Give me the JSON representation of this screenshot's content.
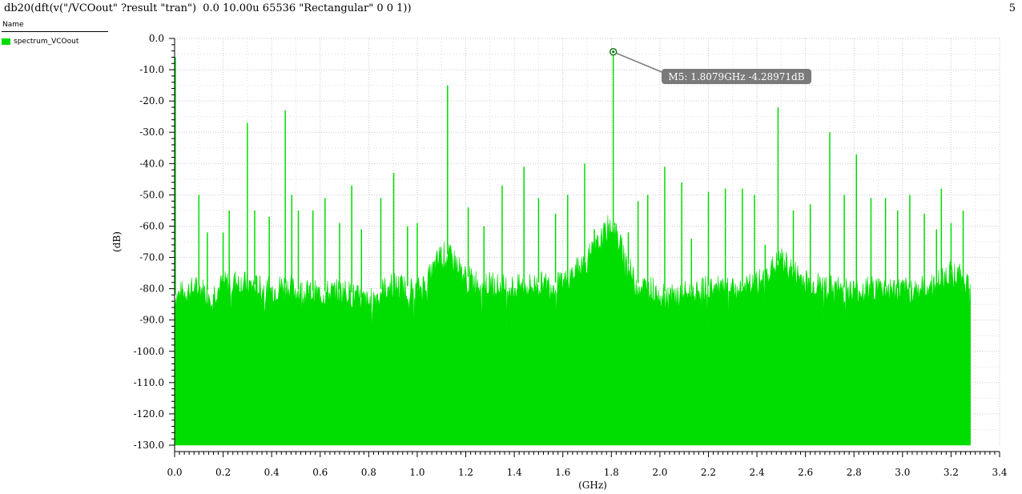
{
  "header": {
    "expression": "db20(dft(v(\"/VCOout\" ?result \"tran\")  0.0 10.00u 65536 \"Rectangular\" 0 0 1))",
    "page_number": "5"
  },
  "legend": {
    "header": "Name",
    "items": [
      {
        "label": "spectrum_VCOout",
        "color": "#00dd00"
      }
    ]
  },
  "marker": {
    "label": "M5: 1.8079GHz -4.28971dB",
    "x": 1.8079,
    "y": -4.28971
  },
  "chart_data": {
    "type": "area",
    "xlabel": "(GHz)",
    "ylabel": "(dB)",
    "xlim": [
      0,
      3.4
    ],
    "ylim": [
      -130,
      0
    ],
    "x_ticks": [
      "0.0",
      "0.2",
      "0.4",
      "0.6",
      "0.8",
      "1.0",
      "1.2",
      "1.4",
      "1.6",
      "1.8",
      "2.0",
      "2.2",
      "2.4",
      "2.6",
      "2.8",
      "3.0",
      "3.2",
      "3.4"
    ],
    "y_ticks": [
      "0.0",
      "-10.0",
      "-20.0",
      "-30.0",
      "-40.0",
      "-50.0",
      "-60.0",
      "-70.0",
      "-80.0",
      "-90.0",
      "-100.0",
      "-110.0",
      "-120.0",
      "-130.0"
    ],
    "grid": true,
    "series": [
      {
        "name": "spectrum_VCOout",
        "color": "#00dd00",
        "x_range": [
          0,
          3.28
        ],
        "noise_floor": [
          [
            0.0,
            -82
          ],
          [
            0.05,
            -80
          ],
          [
            0.1,
            -79
          ],
          [
            0.15,
            -81
          ],
          [
            0.2,
            -78
          ],
          [
            0.25,
            -77
          ],
          [
            0.3,
            -78
          ],
          [
            0.35,
            -79
          ],
          [
            0.4,
            -80
          ],
          [
            0.45,
            -78
          ],
          [
            0.5,
            -80
          ],
          [
            0.6,
            -81
          ],
          [
            0.7,
            -80
          ],
          [
            0.75,
            -82
          ],
          [
            0.8,
            -84
          ],
          [
            0.85,
            -80
          ],
          [
            0.9,
            -78
          ],
          [
            0.95,
            -79
          ],
          [
            1.0,
            -80
          ],
          [
            1.05,
            -76
          ],
          [
            1.1,
            -68
          ],
          [
            1.15,
            -70
          ],
          [
            1.2,
            -76
          ],
          [
            1.3,
            -78
          ],
          [
            1.4,
            -79
          ],
          [
            1.5,
            -78
          ],
          [
            1.6,
            -78
          ],
          [
            1.65,
            -74
          ],
          [
            1.7,
            -70
          ],
          [
            1.75,
            -65
          ],
          [
            1.8,
            -58
          ],
          [
            1.85,
            -68
          ],
          [
            1.9,
            -78
          ],
          [
            2.0,
            -80
          ],
          [
            2.05,
            -82
          ],
          [
            2.1,
            -81
          ],
          [
            2.2,
            -79
          ],
          [
            2.3,
            -80
          ],
          [
            2.4,
            -78
          ],
          [
            2.45,
            -74
          ],
          [
            2.5,
            -70
          ],
          [
            2.55,
            -74
          ],
          [
            2.6,
            -77
          ],
          [
            2.7,
            -79
          ],
          [
            2.8,
            -80
          ],
          [
            2.9,
            -79
          ],
          [
            3.0,
            -80
          ],
          [
            3.1,
            -79
          ],
          [
            3.15,
            -77
          ],
          [
            3.2,
            -74
          ],
          [
            3.25,
            -76
          ],
          [
            3.28,
            -78
          ]
        ],
        "spurs": [
          [
            0.003,
            -6
          ],
          [
            0.1,
            -50
          ],
          [
            0.135,
            -62
          ],
          [
            0.2,
            -62
          ],
          [
            0.225,
            -55
          ],
          [
            0.3,
            -27
          ],
          [
            0.33,
            -55
          ],
          [
            0.39,
            -57
          ],
          [
            0.456,
            -23
          ],
          [
            0.483,
            -50
          ],
          [
            0.51,
            -55
          ],
          [
            0.57,
            -55
          ],
          [
            0.62,
            -51
          ],
          [
            0.68,
            -59
          ],
          [
            0.73,
            -47
          ],
          [
            0.77,
            -61
          ],
          [
            0.85,
            -51
          ],
          [
            0.903,
            -43
          ],
          [
            0.96,
            -60
          ],
          [
            1.0,
            -59
          ],
          [
            1.125,
            -15
          ],
          [
            1.21,
            -54
          ],
          [
            1.275,
            -60
          ],
          [
            1.35,
            -47
          ],
          [
            1.44,
            -41
          ],
          [
            1.5,
            -51
          ],
          [
            1.57,
            -56
          ],
          [
            1.62,
            -50
          ],
          [
            1.69,
            -40
          ],
          [
            1.73,
            -61
          ],
          [
            1.8079,
            -4.28971
          ],
          [
            1.87,
            -62
          ],
          [
            1.91,
            -52
          ],
          [
            1.95,
            -50
          ],
          [
            2.02,
            -41
          ],
          [
            2.09,
            -46
          ],
          [
            2.13,
            -64
          ],
          [
            2.2,
            -49
          ],
          [
            2.27,
            -48
          ],
          [
            2.34,
            -48
          ],
          [
            2.39,
            -50
          ],
          [
            2.434,
            -66
          ],
          [
            2.487,
            -22
          ],
          [
            2.55,
            -55
          ],
          [
            2.62,
            -53
          ],
          [
            2.7,
            -30
          ],
          [
            2.76,
            -50
          ],
          [
            2.81,
            -37
          ],
          [
            2.87,
            -51
          ],
          [
            2.93,
            -51
          ],
          [
            2.98,
            -55
          ],
          [
            3.03,
            -50
          ],
          [
            3.09,
            -56
          ],
          [
            3.14,
            -61
          ],
          [
            3.16,
            -48
          ],
          [
            3.2,
            -59
          ],
          [
            3.25,
            -55
          ]
        ]
      }
    ]
  }
}
